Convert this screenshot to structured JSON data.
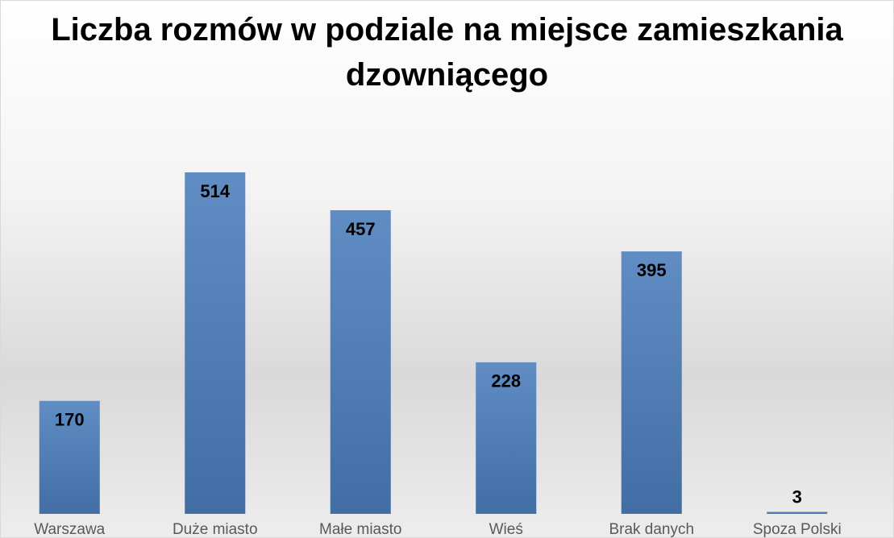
{
  "chart_data": {
    "type": "bar",
    "title": "Liczba rozmów w podziale na miejsce zamieszkania dzowniącego",
    "categories": [
      "Warszawa",
      "Duże miasto",
      "Małe miasto",
      "Wieś",
      "Brak danych",
      "Spoza Polski"
    ],
    "values": [
      170,
      514,
      457,
      228,
      395,
      3
    ],
    "color": "#4a7dbb"
  }
}
